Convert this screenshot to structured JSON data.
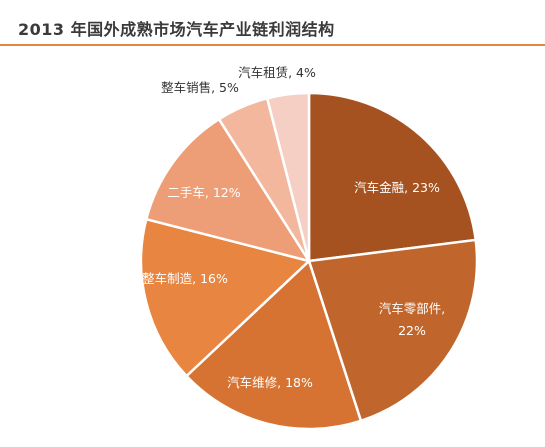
{
  "chart_data": {
    "type": "pie",
    "title": "2013 年国外成熟市场汽车产业链利润结构",
    "slices": [
      {
        "label": "汽车金融",
        "value": 23,
        "text": "汽车金融, 23%",
        "lines": [
          "汽车金融, 23%"
        ],
        "color": "#a65220",
        "text_color": "#ffffff",
        "placement": "inside"
      },
      {
        "label": "汽车零部件",
        "value": 22,
        "text": "汽车零部件, 22%",
        "lines": [
          "汽车零部件,",
          "22%"
        ],
        "color": "#c0662c",
        "text_color": "#ffffff",
        "placement": "inside"
      },
      {
        "label": "汽车维修",
        "value": 18,
        "text": "汽车维修, 18%",
        "lines": [
          "汽车维修, 18%"
        ],
        "color": "#d77332",
        "text_color": "#ffffff",
        "placement": "inside"
      },
      {
        "label": "整车制造",
        "value": 16,
        "text": "整车制造, 16%",
        "lines": [
          "整车制造, 16%"
        ],
        "color": "#e78541",
        "text_color": "#ffffff",
        "placement": "inside"
      },
      {
        "label": "二手车",
        "value": 12,
        "text": "二手车, 12%",
        "lines": [
          "二手车, 12%"
        ],
        "color": "#ee9e77",
        "text_color": "#ffffff",
        "placement": "inside"
      },
      {
        "label": "整车销售",
        "value": 5,
        "text": "整车销售, 5%",
        "lines": [
          "整车销售, 5%"
        ],
        "color": "#f2b79c",
        "text_color": "#333333",
        "placement": "outside"
      },
      {
        "label": "汽车租赁",
        "value": 4,
        "text": "汽车租赁, 4%",
        "lines": [
          "汽车租赁, 4%"
        ],
        "color": "#f5cfc3",
        "text_color": "#333333",
        "placement": "outside"
      }
    ]
  }
}
